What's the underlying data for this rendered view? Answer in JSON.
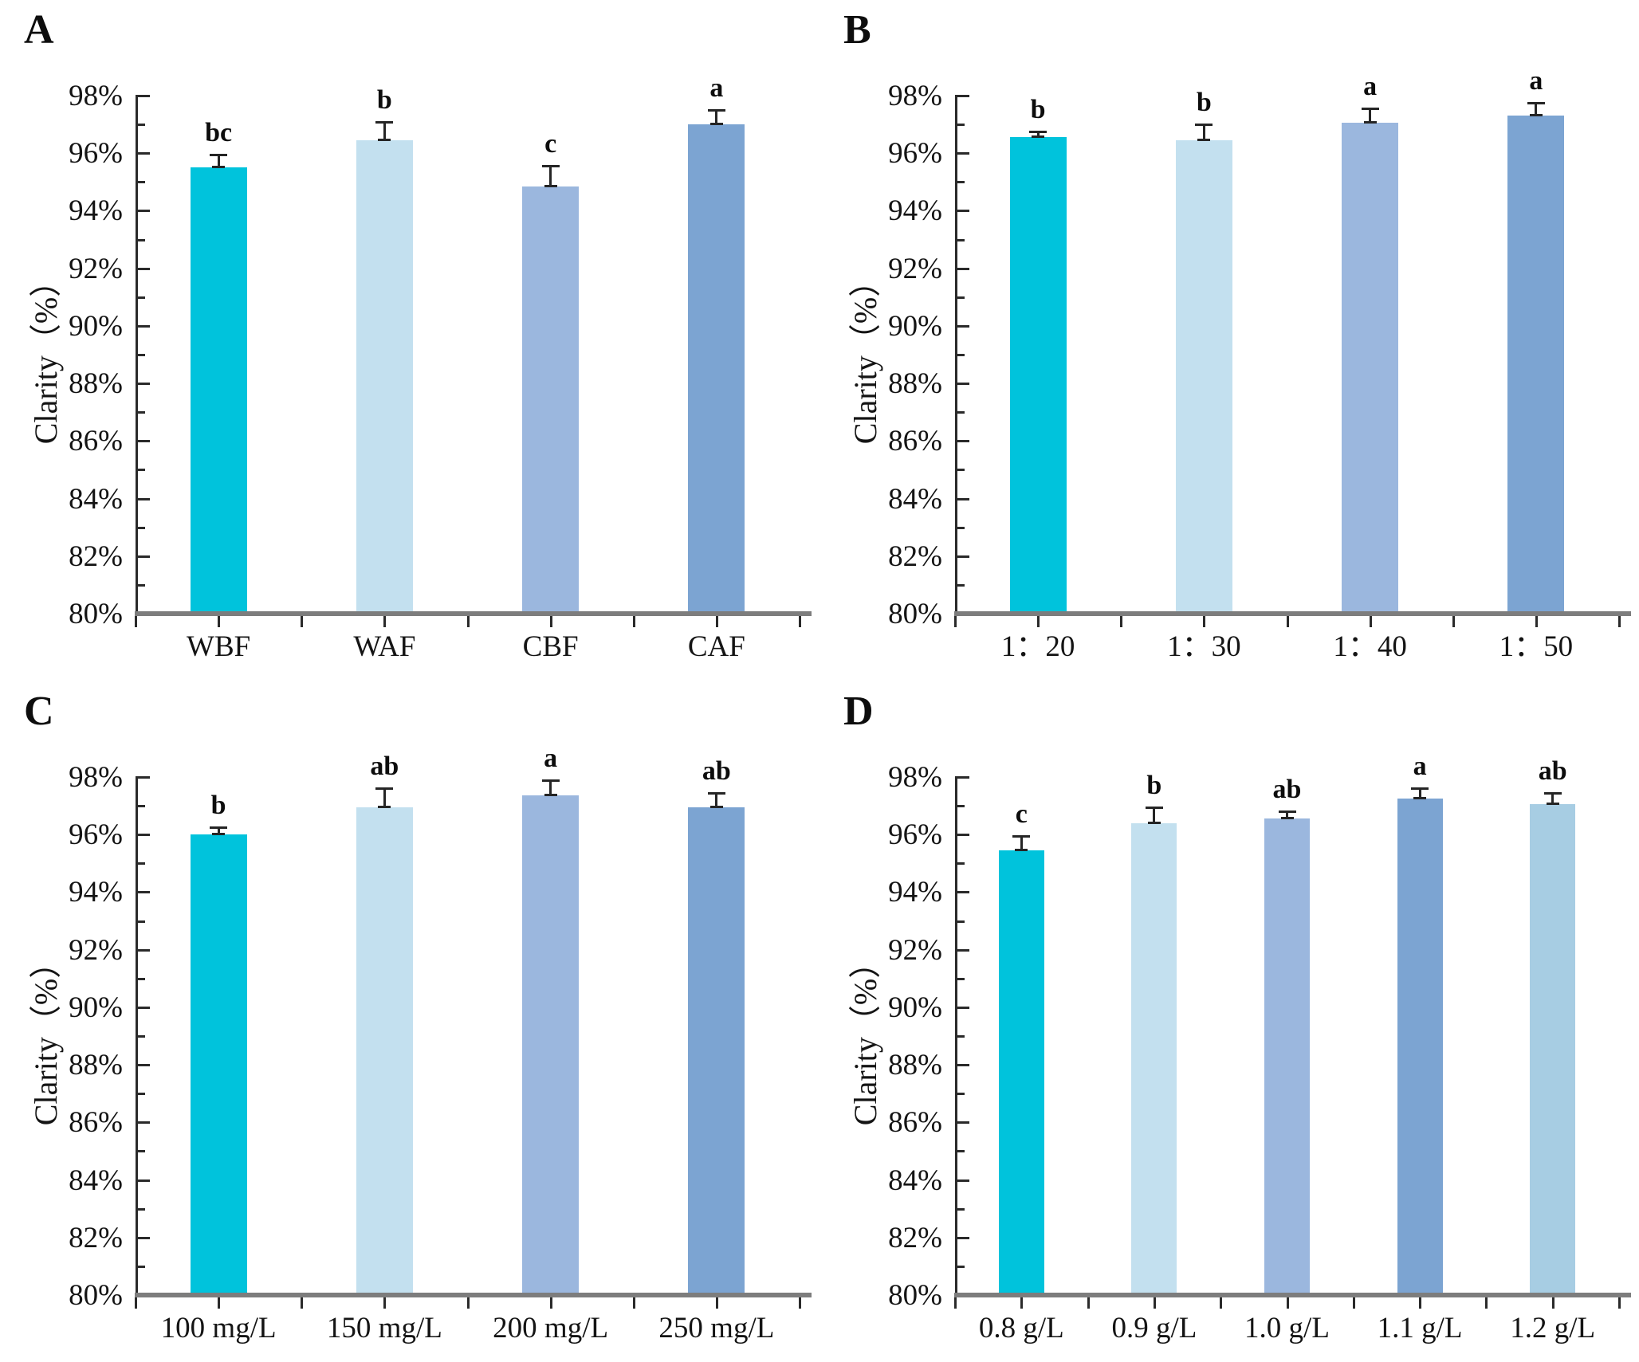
{
  "figure": {
    "ylabel": "Clarity（%）",
    "panel_letters": [
      "A",
      "B",
      "C",
      "D"
    ]
  },
  "palette": {
    "cyan": "#00C3DC",
    "light_blue": "#C3E0EF",
    "periwinkle": "#9BB7DE",
    "steel_blue": "#7CA4D2",
    "sky_blue": "#A7CDE3",
    "axis_gray": "#7D7D7D"
  },
  "chart_data": [
    {
      "panel": "A",
      "type": "bar",
      "title": "",
      "xlabel": "",
      "ylabel": "Clarity（%）",
      "ylim": [
        80,
        98
      ],
      "ytick_step": 2,
      "ytick_format": "percent",
      "grid": false,
      "legend": null,
      "categories": [
        "WBF",
        "WAF",
        "CBF",
        "CAF"
      ],
      "values": [
        95.5,
        96.45,
        94.85,
        97.0
      ],
      "errors": [
        0.45,
        0.65,
        0.7,
        0.5
      ],
      "sig_letters": [
        "bc",
        "b",
        "c",
        "a"
      ],
      "bar_colors": [
        "#00C3DC",
        "#C3E0EF",
        "#9BB7DE",
        "#7CA4D2"
      ]
    },
    {
      "panel": "B",
      "type": "bar",
      "title": "",
      "xlabel": "",
      "ylabel": "Clarity（%）",
      "ylim": [
        80,
        98
      ],
      "ytick_step": 2,
      "ytick_format": "percent",
      "grid": false,
      "legend": null,
      "categories": [
        "1：20",
        "1：30",
        "1：40",
        "1：50"
      ],
      "values": [
        96.55,
        96.45,
        97.05,
        97.3
      ],
      "errors": [
        0.2,
        0.55,
        0.5,
        0.45
      ],
      "sig_letters": [
        "b",
        "b",
        "a",
        "a"
      ],
      "bar_colors": [
        "#00C3DC",
        "#C3E0EF",
        "#9BB7DE",
        "#7CA4D2"
      ]
    },
    {
      "panel": "C",
      "type": "bar",
      "title": "",
      "xlabel": "",
      "ylabel": "Clarity（%）",
      "ylim": [
        80,
        98
      ],
      "ytick_step": 2,
      "ytick_format": "percent",
      "grid": false,
      "legend": null,
      "categories": [
        "100 mg/L",
        "150 mg/L",
        "200 mg/L",
        "250 mg/L"
      ],
      "values": [
        96.0,
        96.95,
        97.35,
        96.95
      ],
      "errors": [
        0.25,
        0.65,
        0.55,
        0.5
      ],
      "sig_letters": [
        "b",
        "ab",
        "a",
        "ab"
      ],
      "bar_colors": [
        "#00C3DC",
        "#C3E0EF",
        "#9BB7DE",
        "#7CA4D2"
      ]
    },
    {
      "panel": "D",
      "type": "bar",
      "title": "",
      "xlabel": "",
      "ylabel": "Clarity（%）",
      "ylim": [
        80,
        98
      ],
      "ytick_step": 2,
      "ytick_format": "percent",
      "grid": false,
      "legend": null,
      "categories": [
        "0.8 g/L",
        "0.9 g/L",
        "1.0 g/L",
        "1.1 g/L",
        "1.2 g/L"
      ],
      "values": [
        95.45,
        96.4,
        96.55,
        97.25,
        97.05
      ],
      "errors": [
        0.5,
        0.55,
        0.27,
        0.35,
        0.4
      ],
      "sig_letters": [
        "c",
        "b",
        "ab",
        "a",
        "ab"
      ],
      "bar_colors": [
        "#00C3DC",
        "#C3E0EF",
        "#9BB7DE",
        "#7CA4D2",
        "#A7CDE3"
      ]
    }
  ]
}
